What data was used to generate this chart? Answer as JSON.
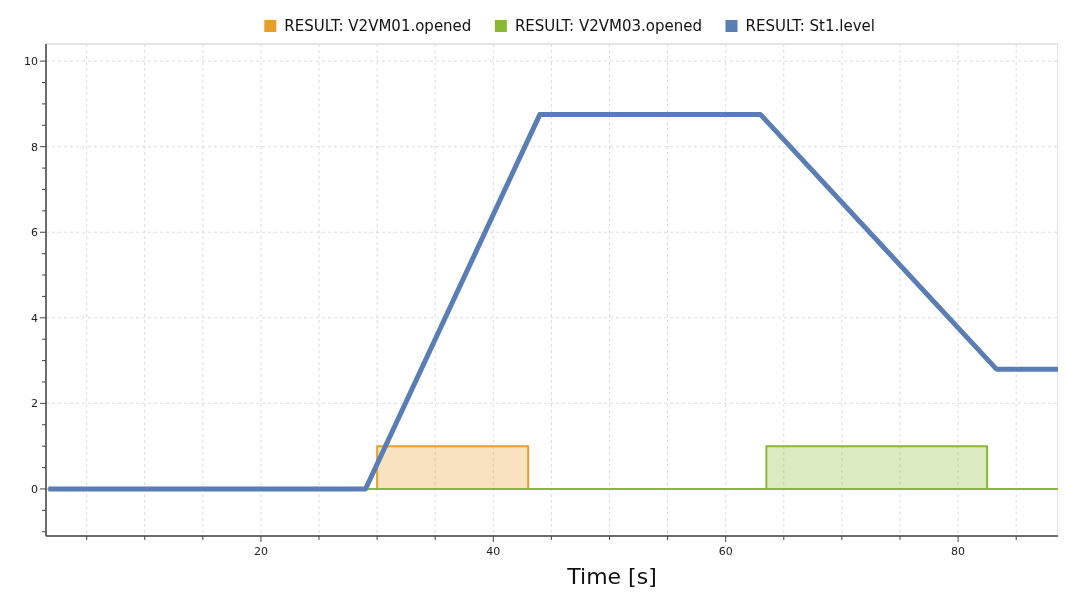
{
  "chart_data": {
    "type": "line",
    "xlabel": "Time [s]",
    "xlim": [
      1.5,
      88.6
    ],
    "ylim": [
      -1.1,
      10.4
    ],
    "xticks": [
      {
        "value": 5,
        "label": null
      },
      {
        "value": 10,
        "label": null
      },
      {
        "value": 15,
        "label": null
      },
      20,
      {
        "value": 25,
        "label": null
      },
      {
        "value": 30,
        "label": null
      },
      {
        "value": 35,
        "label": null
      },
      40,
      {
        "value": 45,
        "label": null
      },
      {
        "value": 50,
        "label": null
      },
      {
        "value": 55,
        "label": null
      },
      60,
      {
        "value": 65,
        "label": null
      },
      {
        "value": 70,
        "label": null
      },
      {
        "value": 75,
        "label": null
      },
      80,
      {
        "value": 85,
        "label": null
      }
    ],
    "yticks": [
      {
        "value": -1,
        "label": null
      },
      {
        "value": -0.5,
        "label": null
      },
      0,
      {
        "value": 0.5,
        "label": null
      },
      {
        "value": 1,
        "label": null
      },
      {
        "value": 1.5,
        "label": null
      },
      2,
      {
        "value": 2.5,
        "label": null
      },
      {
        "value": 3,
        "label": null
      },
      {
        "value": 3.5,
        "label": null
      },
      4,
      {
        "value": 4.5,
        "label": null
      },
      {
        "value": 5,
        "label": null
      },
      {
        "value": 5.5,
        "label": null
      },
      6,
      {
        "value": 6.5,
        "label": null
      },
      {
        "value": 7,
        "label": null
      },
      {
        "value": 7.5,
        "label": null
      },
      8,
      {
        "value": 8.5,
        "label": null
      },
      {
        "value": 9,
        "label": null
      },
      {
        "value": 9.5,
        "label": null
      },
      10
    ],
    "grid": true,
    "legend": "top",
    "marker": "none",
    "series": [
      {
        "name": "RESULT: V2VM01.opened",
        "type": "area",
        "color": "#e8a02a",
        "x": [
          1.7,
          30,
          30,
          43,
          43,
          88.6
        ],
        "values": [
          0,
          0,
          1,
          1,
          0,
          0
        ]
      },
      {
        "name": "RESULT: V2VM03.opened",
        "type": "area",
        "color": "#8ab833",
        "x": [
          29,
          63.5,
          63.5,
          82.5,
          82.5,
          88.6
        ],
        "values": [
          0,
          0,
          1,
          1,
          0,
          0
        ]
      },
      {
        "name": "RESULT: St1.level",
        "color": "#5a7db5",
        "x": [
          1.7,
          29,
          44,
          63,
          83.3,
          88.6
        ],
        "values": [
          0,
          0,
          8.75,
          8.75,
          2.8,
          2.8
        ]
      }
    ]
  }
}
